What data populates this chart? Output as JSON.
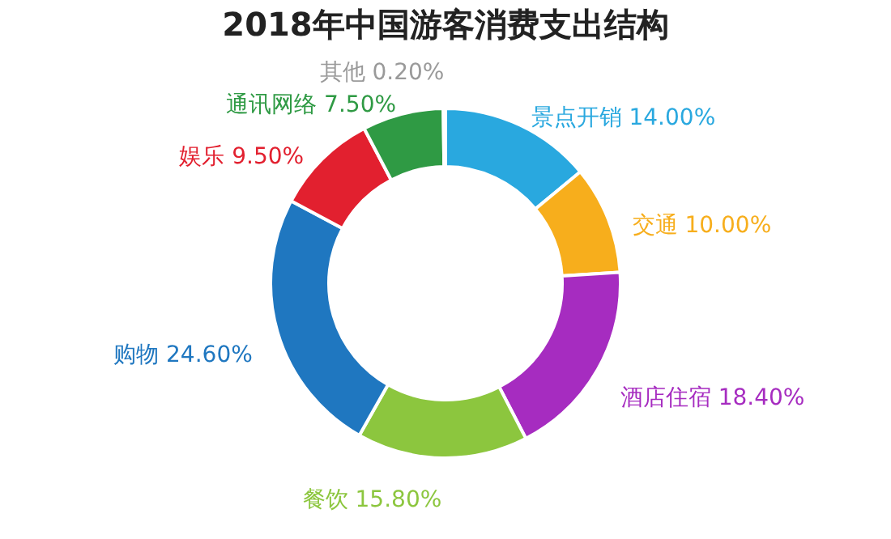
{
  "chart_data": {
    "type": "donut",
    "title": "2018年中国游客消费支出结构",
    "categories": [
      "景点开销",
      "交通",
      "酒店住宿",
      "餐饮",
      "购物",
      "娱乐",
      "通讯网络",
      "其他"
    ],
    "values": [
      14.0,
      10.0,
      18.4,
      15.8,
      24.6,
      9.5,
      7.5,
      0.2
    ],
    "value_labels": [
      "14.00%",
      "10.00%",
      "18.40%",
      "15.80%",
      "24.60%",
      "9.50%",
      "7.50%",
      "0.20%"
    ],
    "colors": [
      "#29a8df",
      "#f7ae1c",
      "#a62cc0",
      "#8cc63e",
      "#1f77c0",
      "#e2202f",
      "#2f9a44",
      "#9a9a9a"
    ],
    "legend": false
  }
}
